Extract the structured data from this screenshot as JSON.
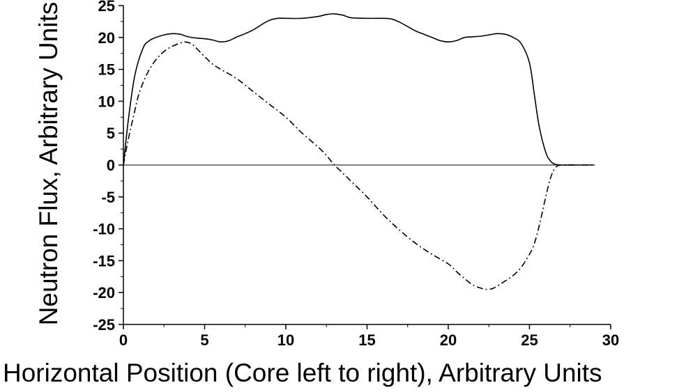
{
  "chart_data": {
    "type": "line",
    "title": "",
    "xlabel": "Horizontal Position (Core left to right), Arbitrary Units",
    "ylabel": "Neutron Flux, Arbitrary Units",
    "xlim": [
      0,
      30
    ],
    "ylim": [
      -25,
      25
    ],
    "x_ticks": [
      0,
      5,
      10,
      15,
      20,
      25,
      30
    ],
    "y_ticks": [
      -25,
      -20,
      -15,
      -10,
      -5,
      0,
      5,
      10,
      15,
      20,
      25
    ],
    "grid": false,
    "legend": "none",
    "zero_line": true,
    "series": [
      {
        "style": "solid",
        "color": "#000000",
        "x": [
          0,
          0.3,
          0.7,
          1.2,
          1.6,
          2.0,
          2.5,
          3.0,
          3.5,
          4.0,
          4.5,
          5.0,
          5.5,
          6.0,
          6.5,
          7.0,
          7.5,
          8.0,
          8.5,
          9.0,
          9.5,
          10.0,
          11.0,
          12.0,
          12.5,
          13.0,
          13.5,
          14.0,
          15.0,
          16.0,
          16.5,
          17.0,
          17.5,
          18.0,
          18.5,
          19.0,
          19.5,
          20.0,
          20.5,
          21.0,
          21.5,
          22.0,
          22.5,
          23.0,
          23.5,
          24.0,
          24.5,
          25.0,
          25.3,
          25.6,
          26.0,
          26.3,
          26.6,
          27.0,
          28.0,
          29.0
        ],
        "y": [
          0,
          7,
          14,
          18.3,
          19.5,
          20,
          20.4,
          20.6,
          20.5,
          20.1,
          19.9,
          19.8,
          19.6,
          19.3,
          19.5,
          20.1,
          20.6,
          21.2,
          22.0,
          22.7,
          23.0,
          23.0,
          23.0,
          23.3,
          23.6,
          23.7,
          23.5,
          23.1,
          23.0,
          23.0,
          22.9,
          22.4,
          21.7,
          21.0,
          20.5,
          20.0,
          19.5,
          19.3,
          19.5,
          20.0,
          20.1,
          20.2,
          20.4,
          20.6,
          20.5,
          20.0,
          19.0,
          16.0,
          11.0,
          6.0,
          2.0,
          0.6,
          0.1,
          0,
          0,
          0
        ]
      },
      {
        "style": "dash-dot",
        "color": "#000000",
        "x": [
          0,
          0.3,
          0.7,
          1.0,
          1.5,
          2.0,
          2.5,
          3.0,
          3.5,
          3.8,
          4.2,
          4.5,
          5.0,
          5.5,
          6.0,
          7.0,
          8.0,
          9.0,
          10.0,
          11.0,
          12.0,
          12.5,
          13.0,
          14.0,
          15.0,
          16.0,
          17.0,
          18.0,
          19.0,
          20.0,
          20.5,
          21.0,
          21.5,
          22.0,
          22.3,
          22.7,
          23.0,
          23.5,
          24.0,
          24.5,
          25.0,
          25.3,
          25.6,
          26.0,
          26.3,
          26.6,
          27.0,
          28.0,
          29.0
        ],
        "y": [
          0,
          4,
          8.5,
          11.5,
          14.5,
          16.5,
          17.8,
          18.6,
          19.1,
          19.3,
          19.0,
          18.3,
          17.0,
          15.8,
          15.0,
          13.5,
          11.5,
          9.5,
          7.5,
          5.0,
          2.8,
          1.5,
          0,
          -2.5,
          -5.0,
          -7.8,
          -10.2,
          -12.3,
          -14.0,
          -15.5,
          -16.7,
          -17.8,
          -18.8,
          -19.3,
          -19.5,
          -19.4,
          -19.0,
          -18.2,
          -17.3,
          -16.0,
          -14.0,
          -12.3,
          -9.5,
          -5.0,
          -2.0,
          -0.4,
          0,
          0,
          0
        ]
      }
    ]
  }
}
